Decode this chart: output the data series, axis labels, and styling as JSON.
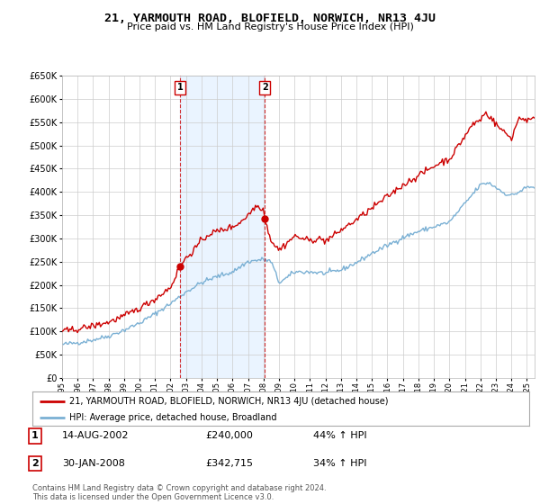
{
  "title": "21, YARMOUTH ROAD, BLOFIELD, NORWICH, NR13 4JU",
  "subtitle": "Price paid vs. HM Land Registry's House Price Index (HPI)",
  "legend_label_red": "21, YARMOUTH ROAD, BLOFIELD, NORWICH, NR13 4JU (detached house)",
  "legend_label_blue": "HPI: Average price, detached house, Broadland",
  "annotation1_label": "1",
  "annotation1_date": "14-AUG-2002",
  "annotation1_price": "£240,000",
  "annotation1_hpi": "44% ↑ HPI",
  "annotation2_label": "2",
  "annotation2_date": "30-JAN-2008",
  "annotation2_price": "£342,715",
  "annotation2_hpi": "34% ↑ HPI",
  "footer": "Contains HM Land Registry data © Crown copyright and database right 2024.\nThis data is licensed under the Open Government Licence v3.0.",
  "background_color": "#ffffff",
  "plot_bg_color": "#ffffff",
  "grid_color": "#cccccc",
  "shade_color": "#ddeeff",
  "red_color": "#cc0000",
  "blue_color": "#7ab0d4",
  "ylim": [
    0,
    650000
  ],
  "yticks": [
    0,
    50000,
    100000,
    150000,
    200000,
    250000,
    300000,
    350000,
    400000,
    450000,
    500000,
    550000,
    600000,
    650000
  ],
  "sale1_year": 2002.62,
  "sale1_price": 240000,
  "sale2_year": 2008.08,
  "sale2_price": 342715,
  "xmin": 1995,
  "xmax": 2025.5
}
